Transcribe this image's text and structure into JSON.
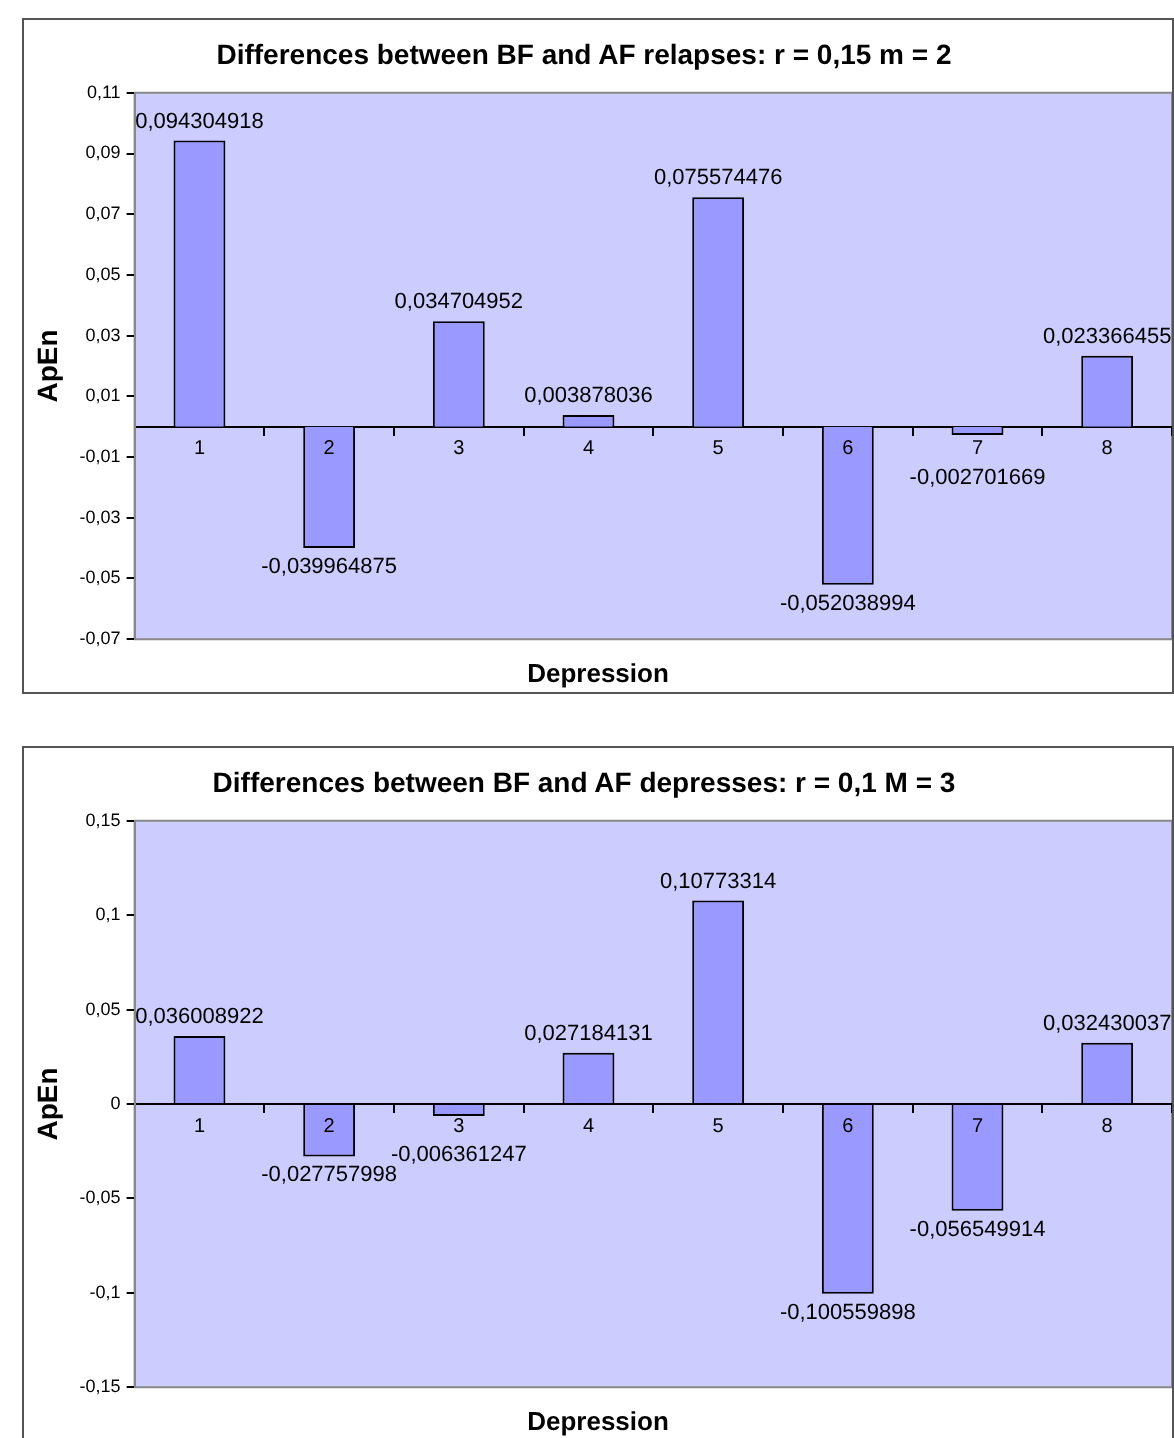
{
  "chart_data": [
    {
      "type": "bar",
      "title": "Differences between BF and AF relapses: r = 0,15 m = 2",
      "xlabel": "Depression",
      "ylabel": "ApEn",
      "categories": [
        "1",
        "2",
        "3",
        "4",
        "5",
        "6",
        "7",
        "8"
      ],
      "color": "#9999ff",
      "values": [
        0.094304918,
        -0.039964875,
        0.034704952,
        0.003878036,
        0.075574476,
        -0.052038994,
        -0.002701669,
        0.023366455
      ],
      "value_labels": [
        "0,094304918",
        "-0,039964875",
        "0,034704952",
        "0,003878036",
        "0,075574476",
        "-0,052038994",
        "-0,002701669",
        "0,023366455"
      ],
      "ylim": [
        -0.07,
        0.11
      ],
      "yticks": [
        {
          "value": -0.07,
          "label": "-0,07"
        },
        {
          "value": -0.05,
          "label": "-0,05"
        },
        {
          "value": -0.03,
          "label": "-0,03"
        },
        {
          "value": -0.01,
          "label": "-0,01"
        },
        {
          "value": 0.01,
          "label": "0,01"
        },
        {
          "value": 0.03,
          "label": "0,03"
        },
        {
          "value": 0.05,
          "label": "0,05"
        },
        {
          "value": 0.07,
          "label": "0,07"
        },
        {
          "value": 0.09,
          "label": "0,09"
        },
        {
          "value": 0.11,
          "label": "0,11"
        }
      ]
    },
    {
      "type": "bar",
      "title": "Differences between BF and AF depresses: r = 0,1 M = 3",
      "xlabel": "Depression",
      "ylabel": "ApEn",
      "categories": [
        "1",
        "2",
        "3",
        "4",
        "5",
        "6",
        "7",
        "8"
      ],
      "color": "#9999ff",
      "values": [
        0.036008922,
        -0.027757998,
        -0.006361247,
        0.027184131,
        0.10773314,
        -0.100559898,
        -0.056549914,
        0.032430037
      ],
      "value_labels": [
        "0,036008922",
        "-0,027757998",
        "-0,006361247",
        "0,027184131",
        "0,10773314",
        "-0,100559898",
        "-0,056549914",
        "0,032430037"
      ],
      "ylim": [
        -0.15,
        0.15
      ],
      "yticks": [
        {
          "value": -0.15,
          "label": "-0,15"
        },
        {
          "value": -0.1,
          "label": "-0,1"
        },
        {
          "value": -0.05,
          "label": "-0,05"
        },
        0,
        {
          "value": 0.05,
          "label": "0,05"
        },
        {
          "value": 0.1,
          "label": "0,1"
        },
        {
          "value": 0.15,
          "label": "0,15"
        }
      ]
    }
  ]
}
